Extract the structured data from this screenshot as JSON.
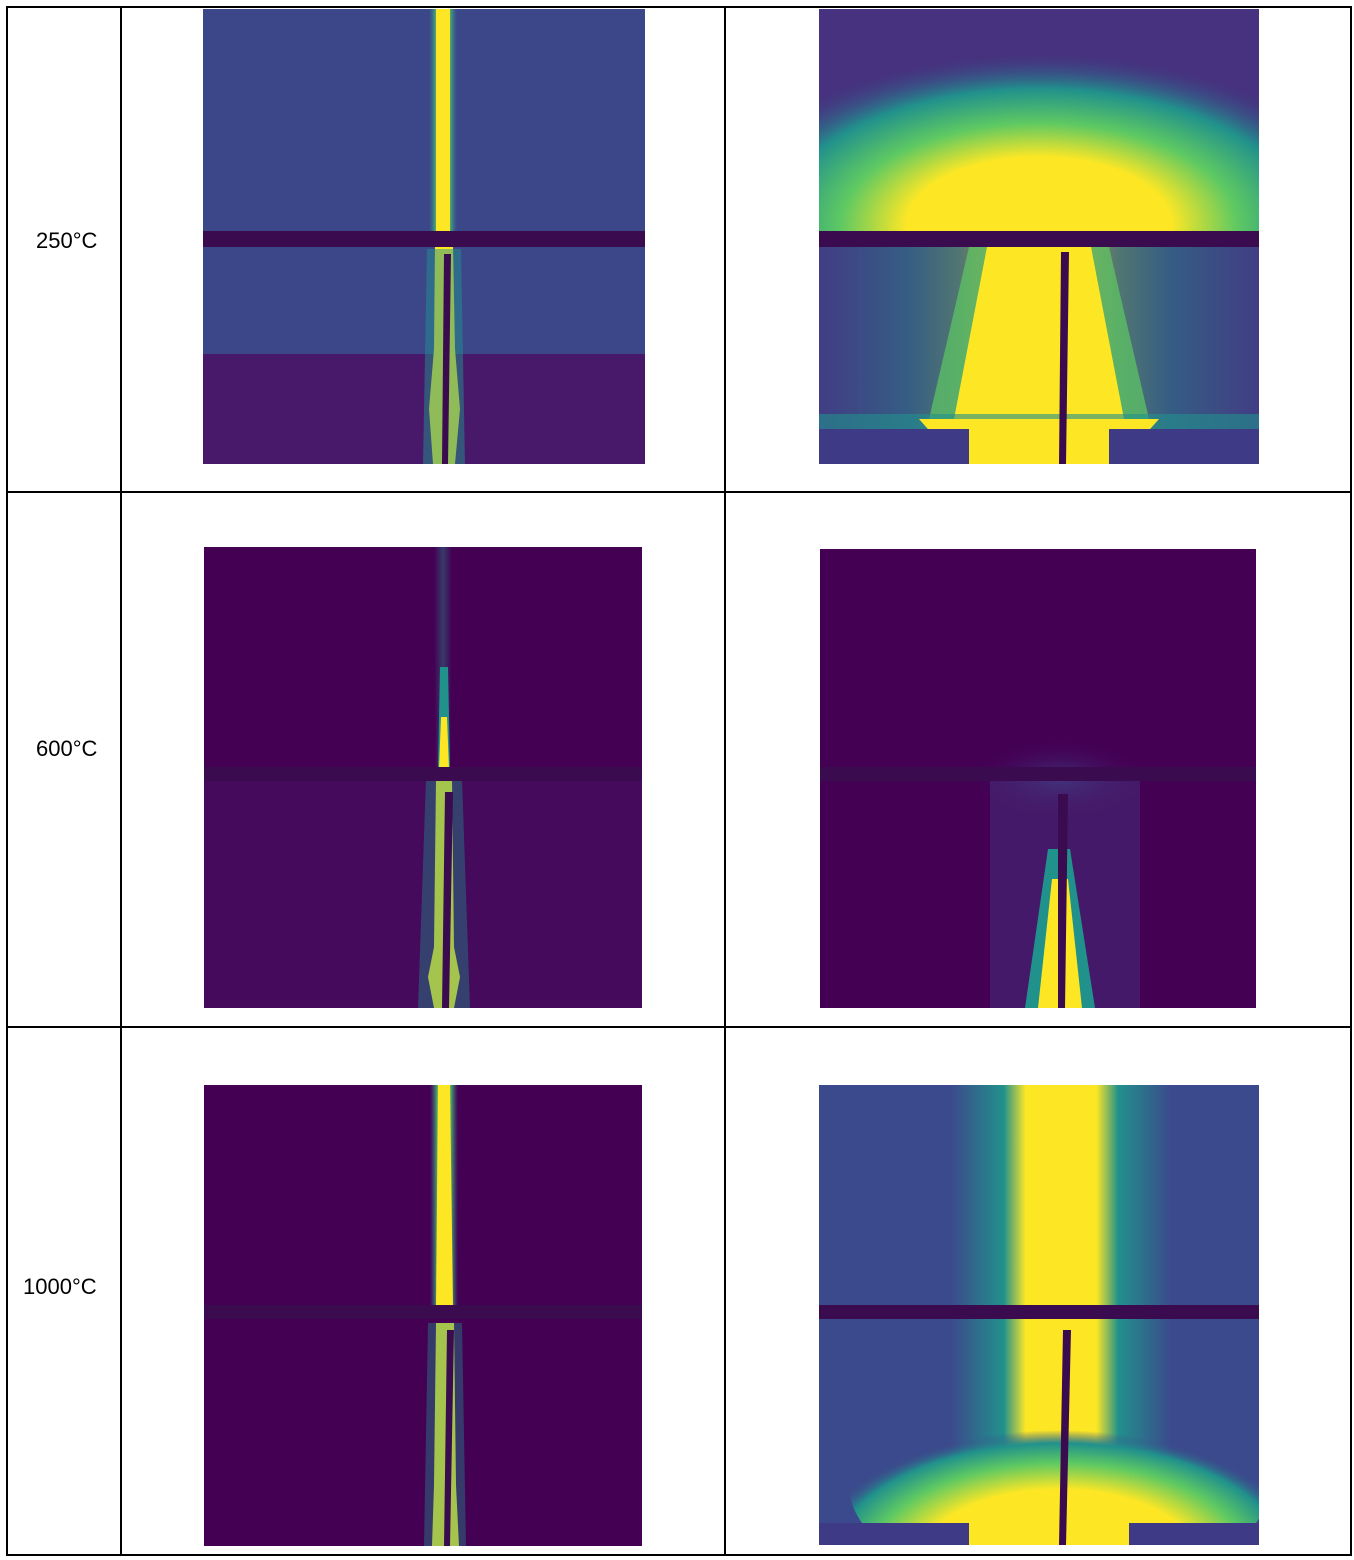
{
  "table": {
    "rows": [
      {
        "temperature": "250°C"
      },
      {
        "temperature": "600°C"
      },
      {
        "temperature": "1000°C"
      }
    ]
  },
  "colormap": {
    "background_high": "#3b4a8c",
    "background_low": "#440154",
    "teal": "#21918c",
    "green": "#5ec962",
    "yellow": "#fde725",
    "beamstop": "#3a0b4f"
  }
}
